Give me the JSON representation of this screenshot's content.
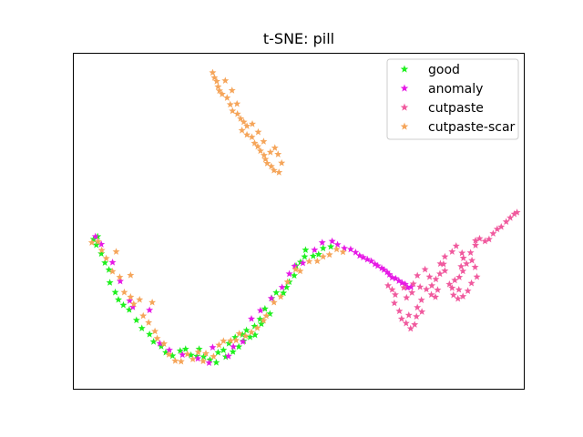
{
  "chart_data": {
    "type": "scatter",
    "title": "t-SNE: pill",
    "xlabel": "",
    "ylabel": "",
    "xlim": [
      0,
      100
    ],
    "ylim": [
      0,
      100
    ],
    "axes_ticks": false,
    "grid": false,
    "marker": "star",
    "legend_position": "top-right",
    "series": [
      {
        "name": "good",
        "color": "#1ef01e",
        "points": [
          [
            4.6,
            44.5
          ],
          [
            5.5,
            45.3
          ],
          [
            5.2,
            42.8
          ],
          [
            6.3,
            40.2
          ],
          [
            7.1,
            37.5
          ],
          [
            8,
            35.4
          ],
          [
            8.2,
            31.6
          ],
          [
            9.4,
            28.7
          ],
          [
            10.1,
            26.5
          ],
          [
            11.2,
            24.9
          ],
          [
            12.5,
            23.5
          ],
          [
            14.1,
            20.4
          ],
          [
            15.3,
            18
          ],
          [
            17,
            16.2
          ],
          [
            17.9,
            14
          ],
          [
            19.6,
            12.6
          ],
          [
            20.6,
            10.8
          ],
          [
            22.1,
            9.8
          ],
          [
            23.8,
            11.3
          ],
          [
            25,
            11.8
          ],
          [
            26.2,
            10
          ],
          [
            27.5,
            9.7
          ],
          [
            28,
            11.8
          ],
          [
            29,
            9.5
          ],
          [
            30.4,
            8.6
          ],
          [
            31.8,
            7.8
          ],
          [
            32.2,
            10.8
          ],
          [
            33.4,
            11.5
          ],
          [
            33.9,
            9.5
          ],
          [
            34.6,
            13.5
          ],
          [
            35.5,
            11
          ],
          [
            36,
            15.3
          ],
          [
            36.8,
            12.5
          ],
          [
            37.6,
            16.1
          ],
          [
            37.9,
            14.2
          ],
          [
            38.5,
            17.4
          ],
          [
            39.3,
            15.4
          ],
          [
            40.3,
            18.6
          ],
          [
            40.4,
            16
          ],
          [
            41.5,
            20.7
          ],
          [
            41.8,
            19.3
          ],
          [
            42.6,
            23.8
          ],
          [
            43.7,
            22.3
          ],
          [
            44.1,
            26.9
          ],
          [
            45.1,
            28.6
          ],
          [
            46.7,
            28.5
          ],
          [
            47.4,
            30.2
          ],
          [
            48,
            31.8
          ],
          [
            49.1,
            33.7
          ],
          [
            49.5,
            36.6
          ],
          [
            50.5,
            37.7
          ],
          [
            51.4,
            39.3
          ],
          [
            51.6,
            41.3
          ],
          [
            53.3,
            39.5
          ],
          [
            54.5,
            40
          ],
          [
            55.5,
            41.8
          ],
          [
            57.2,
            42.3
          ]
        ]
      },
      {
        "name": "anomaly",
        "color": "#e619e6",
        "points": [
          [
            5,
            45.3
          ],
          [
            6.3,
            43
          ],
          [
            8.8,
            37.6
          ],
          [
            10.5,
            32
          ],
          [
            12.6,
            26.2
          ],
          [
            13.3,
            24.3
          ],
          [
            17,
            23.4
          ],
          [
            19.3,
            13.5
          ],
          [
            21.4,
            11.5
          ],
          [
            24.3,
            10.1
          ],
          [
            27.7,
            9
          ],
          [
            30.2,
            7.7
          ],
          [
            31,
            12.3
          ],
          [
            34.5,
            9.7
          ],
          [
            35.6,
            12.5
          ],
          [
            37.7,
            14
          ],
          [
            39.6,
            20.8
          ],
          [
            41.6,
            23.3
          ],
          [
            44,
            26.9
          ],
          [
            46.4,
            30.2
          ],
          [
            48,
            34.2
          ],
          [
            49.2,
            36.5
          ],
          [
            51,
            37.4
          ],
          [
            53.6,
            41.3
          ],
          [
            55.3,
            43.5
          ],
          [
            57.5,
            43.9
          ],
          [
            58.7,
            42.9
          ],
          [
            60.2,
            41.8
          ],
          [
            61.6,
            41.5
          ],
          [
            62.7,
            40.6
          ],
          [
            63.6,
            39.6
          ],
          [
            64.4,
            39.1
          ],
          [
            65.3,
            38.5
          ],
          [
            66.2,
            38
          ],
          [
            67,
            37.1
          ],
          [
            67.6,
            36.6
          ],
          [
            68.5,
            35.9
          ],
          [
            69,
            35.4
          ],
          [
            69.7,
            34.7
          ],
          [
            70.2,
            34
          ],
          [
            70.8,
            33.1
          ],
          [
            71.6,
            32.8
          ],
          [
            72.3,
            32.1
          ],
          [
            73,
            31.5
          ],
          [
            73.7,
            31.1
          ],
          [
            74.2,
            30.1
          ],
          [
            75,
            30.3
          ]
        ]
      },
      {
        "name": "cutpaste",
        "color": "#f05a9e",
        "points": [
          [
            69.9,
            30.7
          ],
          [
            70.8,
            29.5
          ],
          [
            71.5,
            28
          ],
          [
            71.3,
            25.5
          ],
          [
            72.4,
            23.1
          ],
          [
            72.9,
            20.8
          ],
          [
            73.9,
            19.5
          ],
          [
            74.9,
            17.9
          ],
          [
            75.8,
            19.1
          ],
          [
            76.2,
            21.5
          ],
          [
            76.4,
            24.2
          ],
          [
            77.3,
            26.4
          ],
          [
            75.2,
            28.6
          ],
          [
            74,
            27.1
          ],
          [
            73.4,
            30.1
          ],
          [
            75.5,
            31.2
          ],
          [
            77,
            30.3
          ],
          [
            78.4,
            29.6
          ],
          [
            79.6,
            30.7
          ],
          [
            79.5,
            28
          ],
          [
            80.4,
            27.3
          ],
          [
            80.9,
            29.4
          ],
          [
            80.5,
            32.6
          ],
          [
            81.4,
            34.2
          ],
          [
            82.5,
            35.1
          ],
          [
            82.2,
            37.1
          ],
          [
            82.5,
            39.3
          ],
          [
            84.1,
            40.8
          ],
          [
            85,
            42.5
          ],
          [
            86.3,
            40.4
          ],
          [
            86.6,
            38.9
          ],
          [
            87.3,
            37.2
          ],
          [
            86.5,
            35
          ],
          [
            85.7,
            33.2
          ],
          [
            84.7,
            32.3
          ],
          [
            83.5,
            31.1
          ],
          [
            84.1,
            30
          ],
          [
            85.6,
            29.5
          ],
          [
            84.4,
            27.9
          ],
          [
            85.4,
            26.8
          ],
          [
            86.5,
            27.5
          ],
          [
            87.6,
            29.1
          ],
          [
            88.4,
            31.4
          ],
          [
            89.6,
            33.3
          ],
          [
            89.2,
            36.2
          ],
          [
            88.5,
            38.2
          ],
          [
            88.2,
            40.5
          ],
          [
            89.3,
            42.7
          ],
          [
            90.2,
            44.7
          ],
          [
            91.4,
            43.9
          ],
          [
            92.3,
            44.5
          ],
          [
            93.2,
            46.2
          ],
          [
            94.1,
            47.5
          ],
          [
            95,
            48.2
          ],
          [
            96.1,
            49.7
          ],
          [
            97,
            50.9
          ],
          [
            97.9,
            52
          ],
          [
            98.5,
            52.5
          ],
          [
            89.3,
            44.1
          ],
          [
            86.1,
            36.4
          ],
          [
            81.5,
            37.2
          ],
          [
            79.1,
            33.3
          ],
          [
            76.4,
            33.7
          ],
          [
            78.1,
            35.5
          ],
          [
            74.5,
            21.9
          ],
          [
            77.4,
            22.9
          ]
        ]
      },
      {
        "name": "cutpaste-scar",
        "color": "#f5a55a",
        "points": [
          [
            31,
            94.1
          ],
          [
            31.4,
            92.6
          ],
          [
            31.9,
            91.5
          ],
          [
            32.2,
            89.9
          ],
          [
            32.5,
            88.7
          ],
          [
            33.1,
            87.7
          ],
          [
            34.2,
            86.6
          ],
          [
            34.9,
            84.6
          ],
          [
            35.4,
            82.7
          ],
          [
            36.5,
            81.8
          ],
          [
            37.2,
            80.4
          ],
          [
            37.9,
            79.4
          ],
          [
            38.6,
            78.2
          ],
          [
            37.5,
            76.9
          ],
          [
            38.6,
            75.6
          ],
          [
            39.7,
            74.9
          ],
          [
            40.3,
            73.1
          ],
          [
            41,
            72.1
          ],
          [
            41.6,
            70.8
          ],
          [
            42.4,
            69.5
          ],
          [
            42.7,
            68.3
          ],
          [
            43.1,
            67.1
          ],
          [
            44,
            66.2
          ],
          [
            44.6,
            65
          ],
          [
            45.7,
            64.4
          ],
          [
            46.3,
            67.2
          ],
          [
            45.5,
            69.8
          ],
          [
            44.8,
            71.7
          ],
          [
            43.8,
            70.4
          ],
          [
            42.3,
            73.6
          ],
          [
            41.1,
            76.4
          ],
          [
            39.8,
            78.8
          ],
          [
            36.4,
            84.8
          ],
          [
            35.3,
            88.8
          ],
          [
            33.8,
            91.7
          ],
          [
            4.2,
            43.5
          ],
          [
            5.6,
            43.8
          ],
          [
            6.4,
            41.2
          ],
          [
            7.4,
            38.8
          ],
          [
            9.6,
            40.8
          ],
          [
            8.8,
            34.9
          ],
          [
            10.4,
            33.2
          ],
          [
            11.4,
            28.7
          ],
          [
            12.8,
            27.3
          ],
          [
            13.5,
            25.2
          ],
          [
            15.6,
            21.7
          ],
          [
            16.8,
            19.7
          ],
          [
            18.2,
            17.1
          ],
          [
            18.7,
            15
          ],
          [
            20.2,
            13.4
          ],
          [
            21.3,
            10.2
          ],
          [
            22.7,
            8.3
          ],
          [
            24,
            8.1
          ],
          [
            25.4,
            10.3
          ],
          [
            26.6,
            8.8
          ],
          [
            27.8,
            10.9
          ],
          [
            28.9,
            8.2
          ],
          [
            29.5,
            10.5
          ],
          [
            31.2,
            9.6
          ],
          [
            32.4,
            13
          ],
          [
            33.4,
            14.2
          ],
          [
            35,
            14.3
          ],
          [
            36.2,
            14.4
          ],
          [
            36.9,
            16.4
          ],
          [
            38.3,
            15.7
          ],
          [
            39.6,
            16.8
          ],
          [
            40.9,
            18.1
          ],
          [
            42.3,
            20.3
          ],
          [
            42.9,
            21.7
          ],
          [
            44.6,
            25.7
          ],
          [
            46.1,
            27.4
          ],
          [
            47.6,
            31.8
          ],
          [
            49.4,
            35.5
          ],
          [
            50.4,
            35
          ],
          [
            52.4,
            37.9
          ],
          [
            54.2,
            38
          ],
          [
            55.5,
            39.3
          ],
          [
            56.9,
            39.9
          ],
          [
            58.5,
            41.5
          ],
          [
            59.9,
            40.7
          ],
          [
            12.8,
            33.8
          ],
          [
            14.8,
            26.5
          ],
          [
            17.6,
            25.7
          ]
        ]
      }
    ]
  }
}
